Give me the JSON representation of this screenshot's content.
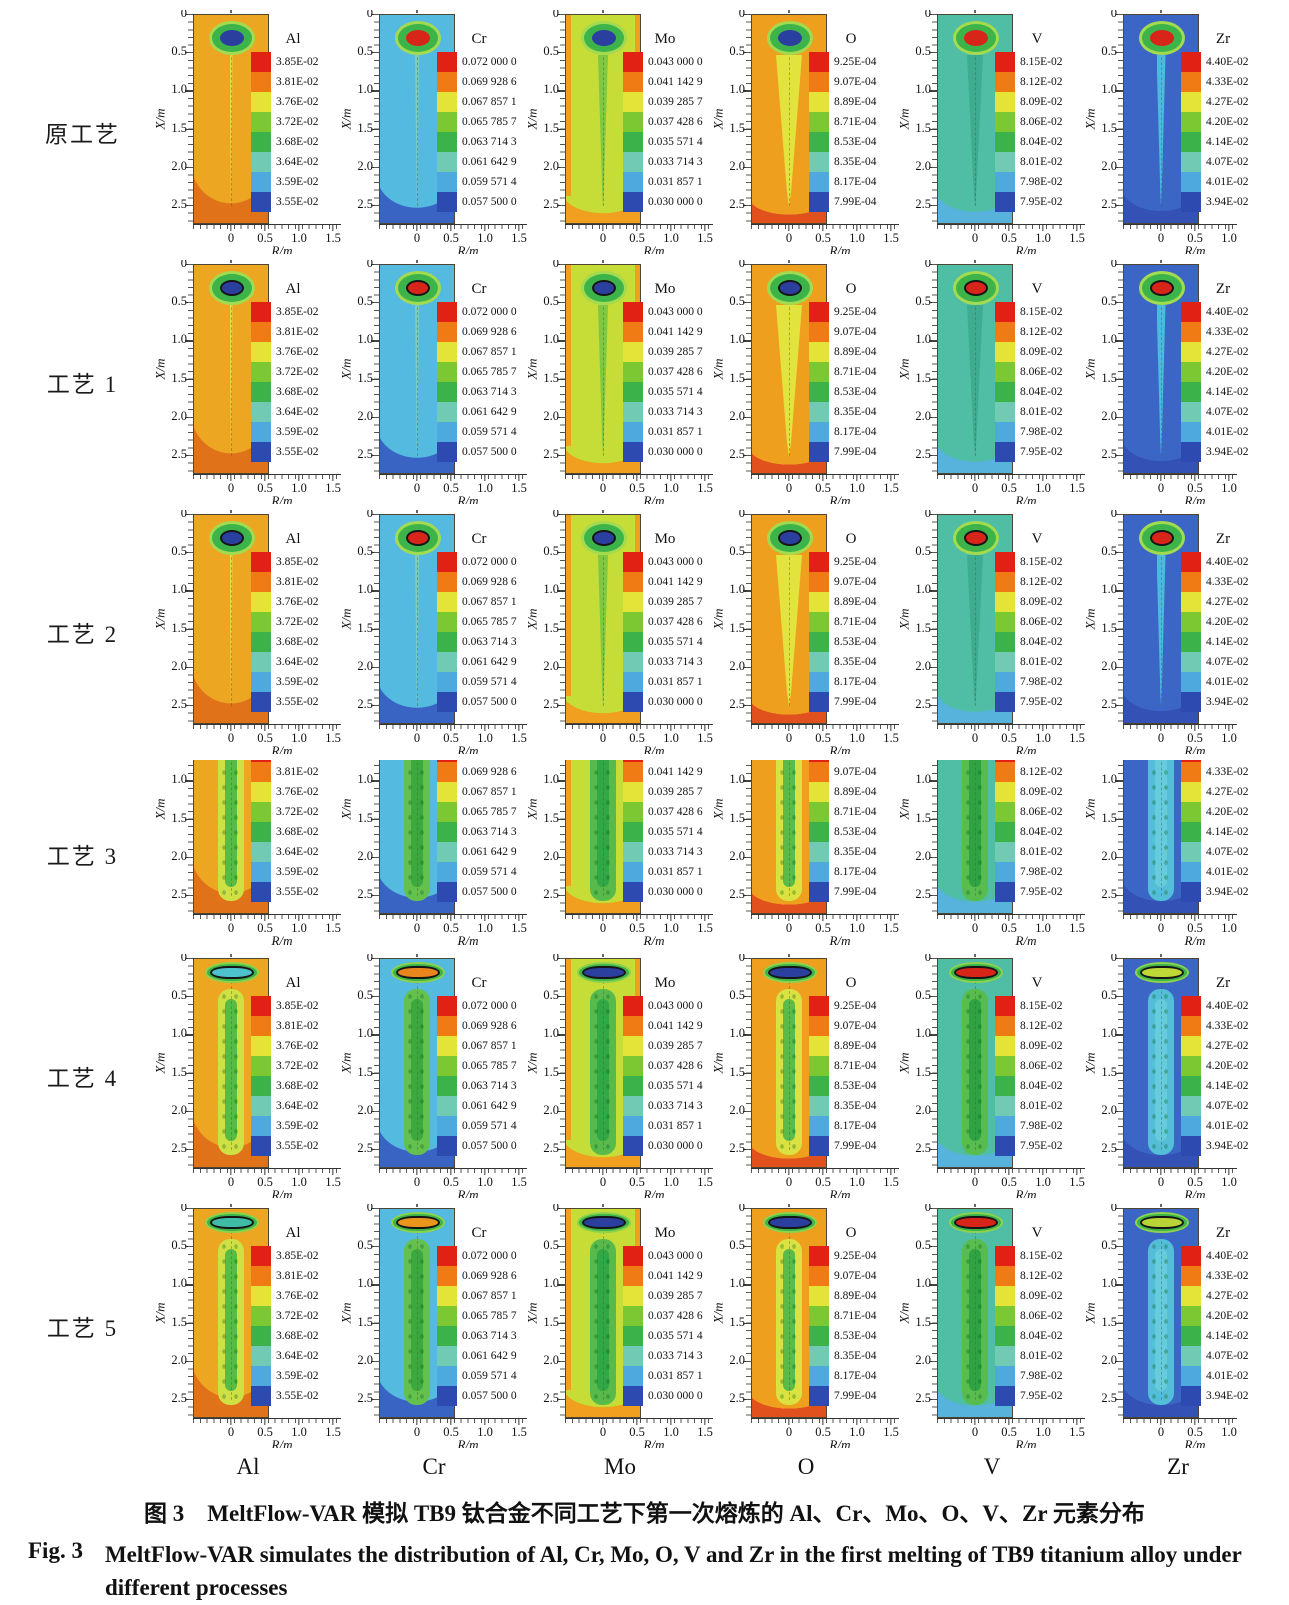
{
  "ylabel": "X/m",
  "xlabel": "R/m",
  "y_ticks": [
    "0",
    "0.5",
    "1.0",
    "1.5",
    "2.0",
    "2.5"
  ],
  "legend_colors": [
    "#E02113",
    "#F07B15",
    "#E4E338",
    "#7CC832",
    "#3CB24A",
    "#70CAB4",
    "#4EAADE",
    "#2C4AB0"
  ],
  "rows": [
    {
      "label": "原工艺",
      "crop": false,
      "blob": "round",
      "outline": false,
      "cores": [
        "#2B3F9E",
        "#D8251A",
        "#2B3F9E",
        "#2B3F9E",
        "#D8251A",
        "#D8251A"
      ]
    },
    {
      "label": "工艺 1",
      "crop": false,
      "blob": "round",
      "outline": true,
      "cores": [
        "#2B3F9E",
        "#D8251A",
        "#2B3F9E",
        "#2B3F9E",
        "#D8251A",
        "#D8251A"
      ]
    },
    {
      "label": "工艺 2",
      "crop": false,
      "blob": "round",
      "outline": true,
      "cores": [
        "#2B3F9E",
        "#D8251A",
        "#2B3F9E",
        "#2B3F9E",
        "#D8251A",
        "#D8251A"
      ]
    },
    {
      "label": "工艺 3",
      "crop": true,
      "blob": "round",
      "outline": true,
      "cores": [
        "#2B3F9E",
        "#D8251A",
        "#2B3F9E",
        "#2B3F9E",
        "#D8251A",
        "#D8251A"
      ]
    },
    {
      "label": "工艺 4",
      "crop": false,
      "blob": "flat",
      "outline": true,
      "cores": [
        "#4EC2CC",
        "#E8851C",
        "#2B3F9E",
        "#2B3F9E",
        "#D8251A",
        "#BED838"
      ]
    },
    {
      "label": "工艺 5",
      "crop": false,
      "blob": "flat",
      "outline": true,
      "cores": [
        "#40BCA6",
        "#E8961C",
        "#2B3F9E",
        "#2B3F9E",
        "#D8251A",
        "#B8D436"
      ]
    }
  ],
  "columns": [
    {
      "element": "Al",
      "x_ticks": [
        "0",
        "0.5",
        "1.0",
        "1.5"
      ],
      "legend_values": [
        "3.85E-02",
        "3.81E-02",
        "3.76E-02",
        "3.72E-02",
        "3.68E-02",
        "3.64E-02",
        "3.59E-02",
        "3.55E-02"
      ]
    },
    {
      "element": "Cr",
      "x_ticks": [
        "0",
        "0.5",
        "1.0",
        "1.5"
      ],
      "legend_values": [
        "0.072 000 0",
        "0.069 928 6",
        "0.067 857 1",
        "0.065 785 7",
        "0.063 714 3",
        "0.061 642 9",
        "0.059 571 4",
        "0.057 500 0"
      ]
    },
    {
      "element": "Mo",
      "x_ticks": [
        "0",
        "0.5",
        "1.0",
        "1.5"
      ],
      "legend_values": [
        "0.043 000 0",
        "0.041 142 9",
        "0.039 285 7",
        "0.037 428 6",
        "0.035 571 4",
        "0.033 714 3",
        "0.031 857 1",
        "0.030 000 0"
      ]
    },
    {
      "element": "O",
      "x_ticks": [
        "0",
        "0.5",
        "1.0",
        "1.5"
      ],
      "legend_values": [
        "9.25E-04",
        "9.07E-04",
        "8.89E-04",
        "8.71E-04",
        "8.53E-04",
        "8.35E-04",
        "8.17E-04",
        "7.99E-04"
      ]
    },
    {
      "element": "V",
      "x_ticks": [
        "0",
        "0.5",
        "1.0",
        "1.5"
      ],
      "legend_values": [
        "8.15E-02",
        "8.12E-02",
        "8.09E-02",
        "8.06E-02",
        "8.04E-02",
        "8.01E-02",
        "7.98E-02",
        "7.95E-02"
      ]
    },
    {
      "element": "Zr",
      "x_ticks": [
        "0",
        "0.5",
        "1.0"
      ],
      "legend_values": [
        "4.40E-02",
        "4.33E-02",
        "4.27E-02",
        "4.20E-02",
        "4.14E-02",
        "4.07E-02",
        "4.01E-02",
        "3.94E-02"
      ]
    }
  ],
  "plot_styles": [
    {
      "body": "#EDA621",
      "bottom": "#E0731A",
      "side": null,
      "bottom_h": 26,
      "streak_thin": "#D8DF3F",
      "thin_w": 3,
      "streak_wide": "#CFE044",
      "core": "#58BB44"
    },
    {
      "body": "#54BAE0",
      "bottom": "#3A64C4",
      "side": null,
      "bottom_h": 20,
      "streak_thin": "#7ECDB6",
      "thin_w": 4,
      "streak_wide": "#64C14D",
      "core": "#3CA93E"
    },
    {
      "body": "#C6DC37",
      "bottom": "#F0A01E",
      "side": "#F0A01E",
      "bottom_h": 13,
      "streak_thin": "#7FC940",
      "thin_w": 10,
      "streak_wide": "#58BA4B",
      "core": "#2FA845"
    },
    {
      "body": "#EF9F1E",
      "bottom": "#E0511D",
      "side": null,
      "bottom_h": 11,
      "streak_thin": "#E2E43D",
      "thin_w": 26,
      "streak_wide": "#D9E240",
      "core": "#5ABB49"
    },
    {
      "body": "#4FBEA4",
      "bottom": "#57B2DC",
      "side": null,
      "bottom_h": 15,
      "streak_thin": "#3EAC90",
      "thin_w": 16,
      "streak_wide": "#58BC4E",
      "core": "#2FA344"
    },
    {
      "body": "#3B66C6",
      "bottom": "#3452B6",
      "side": null,
      "bottom_h": 16,
      "streak_thin": "#4CBADC",
      "thin_w": 9,
      "streak_wide": "#54BDD8",
      "core": "#64CCDC"
    }
  ],
  "bottom_labels": [
    "Al",
    "Cr",
    "Mo",
    "O",
    "V",
    "Zr"
  ],
  "caption_cn": "图 3　MeltFlow-VAR 模拟 TB9 钛合金不同工艺下第一次熔炼的 Al、Cr、Mo、O、V、Zr 元素分布",
  "caption_en_prefix": "Fig. 3",
  "caption_en": "MeltFlow-VAR simulates the distribution of Al, Cr, Mo, O, V and Zr in the first melting of TB9 titanium alloy under different processes",
  "chart_data": {
    "type": "heatmap",
    "layout": "6 process rows × 6 element columns of axisymmetric contour maps",
    "rows": [
      "原工艺",
      "工艺 1",
      "工艺 2",
      "工艺 3",
      "工艺 4",
      "工艺 5"
    ],
    "columns": [
      "Al",
      "Cr",
      "Mo",
      "O",
      "V",
      "Zr"
    ],
    "x_axis": {
      "label": "R/m",
      "ticks": [
        0,
        0.5,
        1.0,
        1.5
      ],
      "zr_ticks": [
        0,
        0.5,
        1.0
      ]
    },
    "y_axis": {
      "label": "X/m",
      "ticks": [
        0,
        0.5,
        1.0,
        1.5,
        2.0,
        2.5
      ]
    },
    "color_scales": {
      "Al": {
        "max": 0.0385,
        "min": 0.0355
      },
      "Cr": {
        "max": 0.072,
        "min": 0.0575
      },
      "Mo": {
        "max": 0.043,
        "min": 0.03
      },
      "O": {
        "max": 0.000925,
        "min": 0.000799
      },
      "V": {
        "max": 0.0815,
        "min": 0.0795
      },
      "Zr": {
        "max": 0.044,
        "min": 0.0394
      }
    }
  }
}
